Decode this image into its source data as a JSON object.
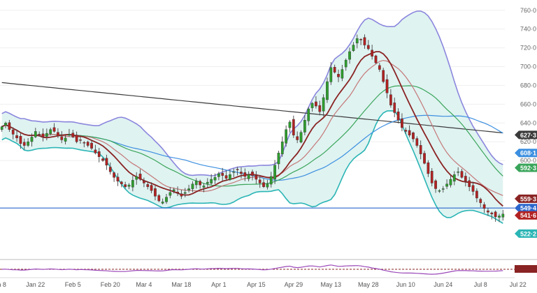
{
  "colors": {
    "up": "#2e9e2e",
    "down": "#b22222",
    "band_line": "#8b86dd",
    "band_fill": "#dff3f1",
    "lower_band_line": "#2bb5b5",
    "ma_long": "#3b3b3b",
    "ma_blue": "#3c8fe0",
    "ma_green": "#3aa55a",
    "ma_red1": "#c47878",
    "ma_red2": "#8a2323",
    "hline": "#2a66cc",
    "grid": "#efefef"
  },
  "chart_data": {
    "type": "candlestick",
    "instrument_note": "",
    "x_axis": {
      "labels": [
        "n 8",
        "Jan 22",
        "Feb 5",
        "Feb 20",
        "Mar 4",
        "Mar 18",
        "Apr 1",
        "Apr 15",
        "Apr 29",
        "May 13",
        "May 28",
        "Jun 10",
        "Jun 24",
        "Jul 8",
        "Jul 22"
      ],
      "bar_index": [
        0,
        9,
        19,
        29,
        38,
        48,
        58,
        68,
        78,
        88,
        98,
        108,
        118,
        128,
        138
      ]
    },
    "y_axis": {
      "ylim": [
        502,
        768
      ],
      "ticks": [
        600,
        620,
        640,
        660,
        680,
        700,
        720,
        740,
        760
      ],
      "tick_labels": [
        "600·0",
        "620·0",
        "640·0",
        "660·0",
        "680·0",
        "700·0",
        "720·0",
        "740·0",
        "760·0"
      ]
    },
    "price_tags": [
      {
        "label": "627·3",
        "value": 627.3,
        "color": "#3b3b3b"
      },
      {
        "label": "608·1",
        "value": 608.1,
        "color": "#3c8fe0"
      },
      {
        "label": "592·3",
        "value": 592.3,
        "color": "#3aa55a"
      },
      {
        "label": "559·3",
        "value": 559.3,
        "color": "#8a2323"
      },
      {
        "label": "549·4",
        "value": 549.4,
        "color": "#2a66cc"
      },
      {
        "label": "541·6",
        "value": 541.6,
        "color": "#b22222"
      },
      {
        "label": "522·2",
        "value": 522.2,
        "color": "#2bb5b5"
      }
    ],
    "horizontal_line": 549.4,
    "closes": [
      636,
      640,
      633,
      628,
      624,
      618,
      616,
      620,
      625,
      631,
      628,
      625,
      629,
      633,
      631,
      626,
      622,
      624,
      628,
      625,
      620,
      622,
      619,
      616,
      613,
      608,
      604,
      600,
      595,
      588,
      582,
      578,
      575,
      572,
      574,
      579,
      583,
      580,
      576,
      572,
      568,
      562,
      557,
      556,
      561,
      566,
      569,
      565,
      562,
      566,
      570,
      575,
      578,
      574,
      573,
      577,
      580,
      582,
      586,
      584,
      581,
      585,
      588,
      590,
      586,
      583,
      585,
      584,
      580,
      576,
      572,
      575,
      583,
      595,
      608,
      620,
      633,
      641,
      627,
      622,
      630,
      643,
      655,
      661,
      658,
      652,
      667,
      684,
      699,
      694,
      689,
      697,
      707,
      716,
      723,
      730,
      729,
      723,
      719,
      711,
      704,
      697,
      684,
      672,
      659,
      651,
      643,
      635,
      631,
      627,
      623,
      616,
      607,
      597,
      586,
      576,
      570,
      568,
      570,
      575,
      580,
      585,
      588,
      582,
      578,
      572,
      567,
      560,
      555,
      549,
      545,
      543,
      540,
      541,
      543
    ]
  }
}
